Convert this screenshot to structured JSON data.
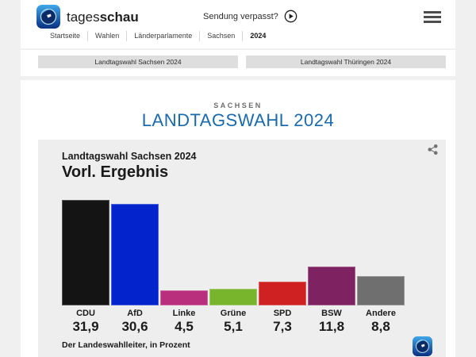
{
  "header": {
    "brand_regular": "tages",
    "brand_bold": "schau",
    "broadcast_link": "Sendung verpasst?",
    "breadcrumb": [
      "Startseite",
      "Wahlen",
      "Länderparlamente",
      "Sachsen",
      "2024"
    ]
  },
  "tabs": [
    {
      "label": "Landtagswahl Sachsen 2024",
      "slug": "tab-landtagswahl-sachsen-2024"
    },
    {
      "label": "Landtagswahl Thüringen 2024",
      "slug": "tab-landtagswahl-thueringen-2024"
    }
  ],
  "page": {
    "kicker": "SACHSEN",
    "title": "LANDTAGSWAHL 2024"
  },
  "chart": {
    "title": "Landtagswahl Sachsen 2024",
    "subtitle": "Vorl. Ergebnis",
    "source": "Der Landeswahlleiter, in Prozent"
  },
  "chart_data": {
    "type": "bar",
    "title": "Landtagswahl Sachsen 2024 – Vorl. Ergebnis",
    "categories": [
      "CDU",
      "AfD",
      "Linke",
      "Grüne",
      "SPD",
      "BSW",
      "Andere"
    ],
    "values": [
      31.9,
      30.6,
      4.5,
      5.1,
      7.3,
      11.8,
      8.8
    ],
    "value_labels": [
      "31,9",
      "30,6",
      "4,5",
      "5,1",
      "7,3",
      "11,8",
      "8,8"
    ],
    "bar_colors": [
      "#141414",
      "#0324cc",
      "#b92e7d",
      "#78b52c",
      "#d02122",
      "#7f2261",
      "#6f6f6f"
    ],
    "xlabel": "",
    "ylabel": "",
    "ylim": [
      0,
      33
    ],
    "grid": false,
    "legend": false
  },
  "colors": {
    "accent_blue": "#1a6aac",
    "page_bg": "#f0f0f0",
    "card_bg": "#ffffff",
    "chart_bg": "#eeeeee",
    "tab_bg": "#dedede"
  }
}
